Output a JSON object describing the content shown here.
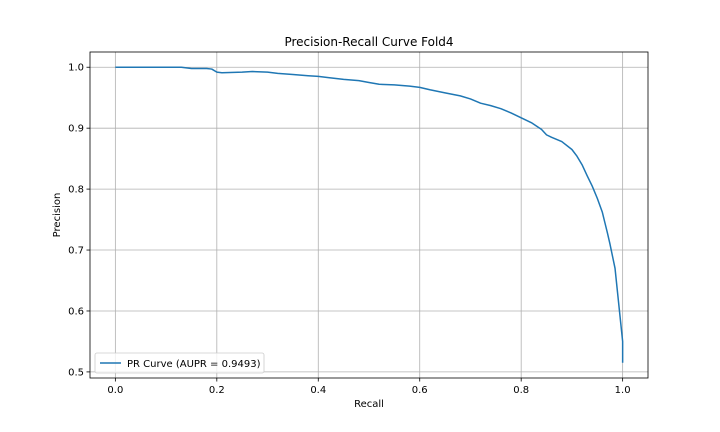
{
  "chart_data": {
    "type": "line",
    "title": "Precision-Recall Curve Fold4",
    "xlabel": "Recall",
    "ylabel": "Precision",
    "xlim": [
      -0.05,
      1.05
    ],
    "ylim": [
      0.49,
      1.025
    ],
    "xticks": [
      "0.0",
      "0.2",
      "0.4",
      "0.6",
      "0.8",
      "1.0"
    ],
    "yticks": [
      "0.5",
      "0.6",
      "0.7",
      "0.8",
      "0.9",
      "1.0"
    ],
    "grid": true,
    "legend_position": "lower-left",
    "series": [
      {
        "name": "PR Curve (AUPR = 0.9493)",
        "color": "#1f77b4",
        "x": [
          0.0,
          0.05,
          0.1,
          0.13,
          0.15,
          0.18,
          0.19,
          0.2,
          0.21,
          0.25,
          0.27,
          0.3,
          0.32,
          0.35,
          0.38,
          0.4,
          0.42,
          0.45,
          0.48,
          0.5,
          0.52,
          0.55,
          0.58,
          0.6,
          0.62,
          0.65,
          0.68,
          0.7,
          0.72,
          0.74,
          0.76,
          0.78,
          0.8,
          0.82,
          0.84,
          0.85,
          0.86,
          0.88,
          0.9,
          0.91,
          0.92,
          0.93,
          0.94,
          0.95,
          0.96,
          0.965,
          0.97,
          0.975,
          0.98,
          0.985,
          0.99,
          0.995,
          1.0,
          1.0
        ],
        "y": [
          1.0,
          1.0,
          1.0,
          1.0,
          0.998,
          0.998,
          0.997,
          0.992,
          0.991,
          0.992,
          0.993,
          0.992,
          0.99,
          0.988,
          0.986,
          0.985,
          0.983,
          0.98,
          0.978,
          0.975,
          0.972,
          0.971,
          0.969,
          0.967,
          0.963,
          0.958,
          0.953,
          0.948,
          0.941,
          0.937,
          0.932,
          0.925,
          0.917,
          0.909,
          0.898,
          0.889,
          0.885,
          0.878,
          0.865,
          0.854,
          0.84,
          0.822,
          0.805,
          0.785,
          0.762,
          0.745,
          0.728,
          0.71,
          0.69,
          0.67,
          0.63,
          0.59,
          0.55,
          0.515
        ]
      }
    ]
  }
}
